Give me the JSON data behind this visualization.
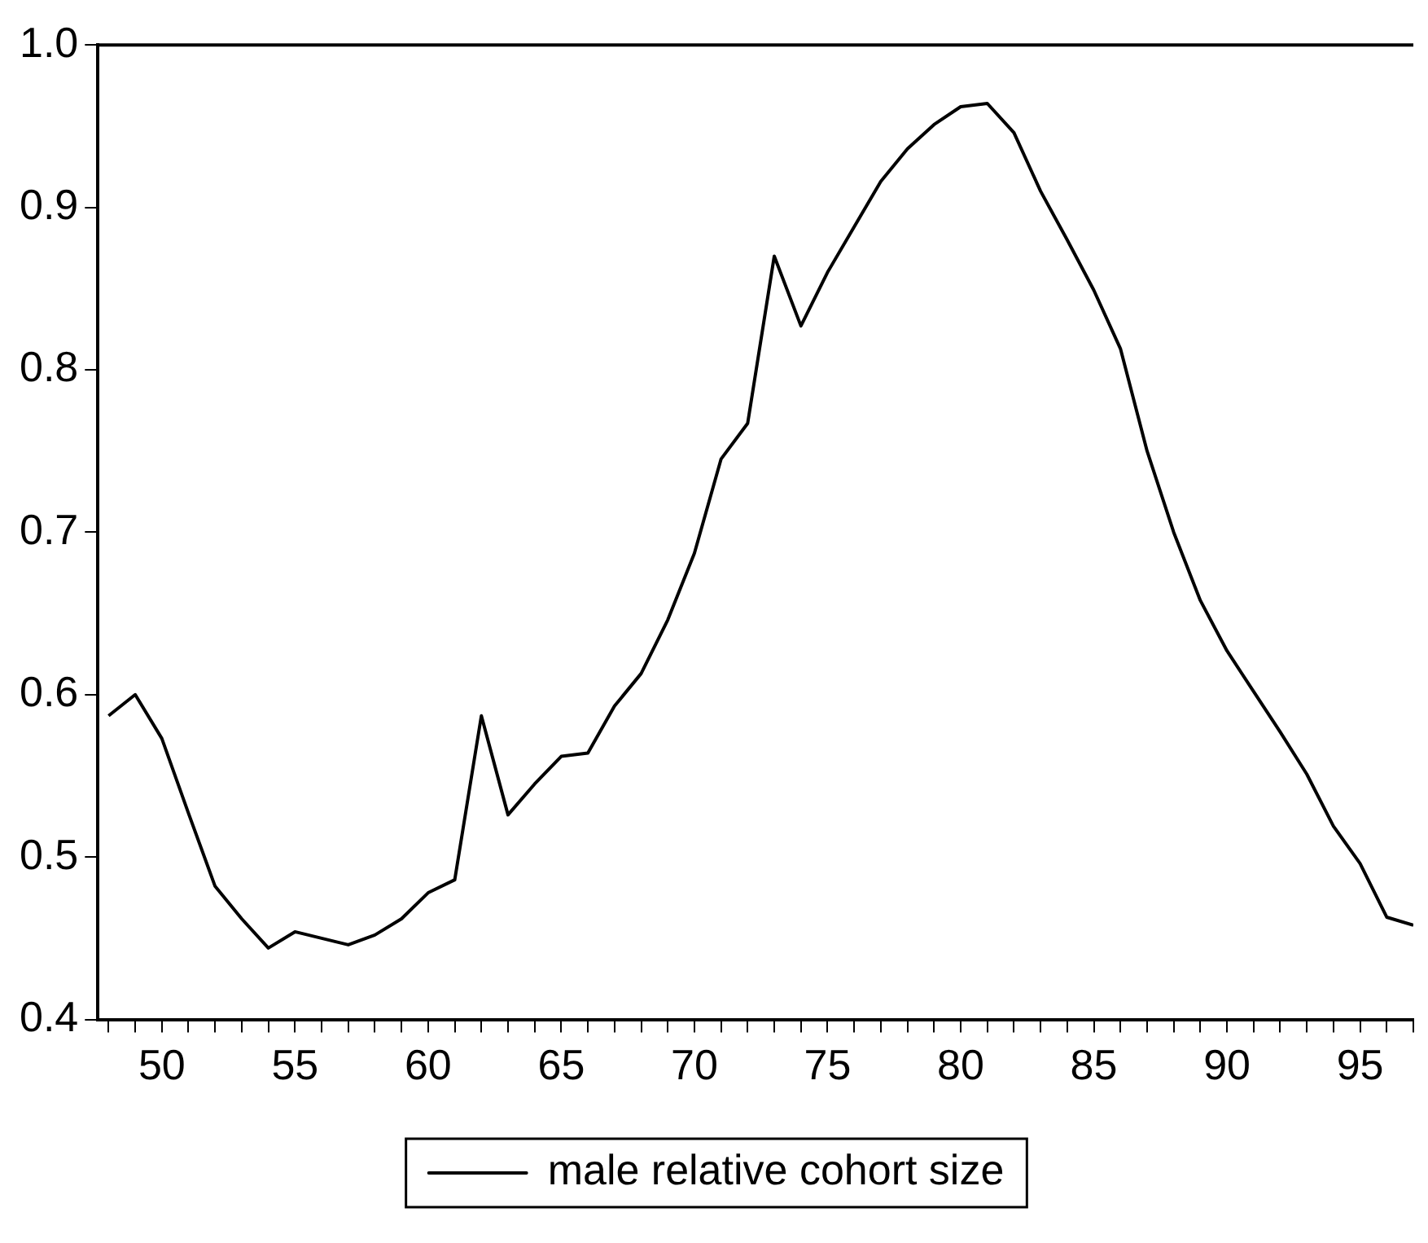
{
  "chart_data": {
    "type": "line",
    "x": [
      48,
      49,
      50,
      51,
      52,
      53,
      54,
      55,
      56,
      57,
      58,
      59,
      60,
      61,
      62,
      63,
      64,
      65,
      66,
      67,
      68,
      69,
      70,
      71,
      72,
      73,
      74,
      75,
      76,
      77,
      78,
      79,
      80,
      81,
      82,
      83,
      84,
      85,
      86,
      87,
      88,
      89,
      90,
      91,
      92,
      93,
      94,
      95,
      96,
      97
    ],
    "series": [
      {
        "name": "male relative cohort size",
        "color": "#000000",
        "values": [
          0.587,
          0.6,
          0.573,
          0.527,
          0.482,
          0.462,
          0.444,
          0.454,
          0.45,
          0.446,
          0.452,
          0.462,
          0.478,
          0.486,
          0.587,
          0.526,
          0.545,
          0.562,
          0.564,
          0.593,
          0.613,
          0.646,
          0.687,
          0.745,
          0.767,
          0.87,
          0.827,
          0.86,
          0.888,
          0.916,
          0.936,
          0.951,
          0.962,
          0.964,
          0.946,
          0.91,
          0.88,
          0.849,
          0.813,
          0.75,
          0.7,
          0.658,
          0.627,
          0.602,
          0.577,
          0.551,
          0.519,
          0.496,
          0.463,
          0.458
        ]
      }
    ],
    "xlim": [
      47.6,
      97
    ],
    "xticks": [
      {
        "value": 48,
        "label": null
      },
      {
        "value": 49,
        "label": null
      },
      50,
      {
        "value": 51,
        "label": null
      },
      {
        "value": 52,
        "label": null
      },
      {
        "value": 53,
        "label": null
      },
      {
        "value": 54,
        "label": null
      },
      55,
      {
        "value": 56,
        "label": null
      },
      {
        "value": 57,
        "label": null
      },
      {
        "value": 58,
        "label": null
      },
      {
        "value": 59,
        "label": null
      },
      60,
      {
        "value": 61,
        "label": null
      },
      {
        "value": 62,
        "label": null
      },
      {
        "value": 63,
        "label": null
      },
      {
        "value": 64,
        "label": null
      },
      65,
      {
        "value": 66,
        "label": null
      },
      {
        "value": 67,
        "label": null
      },
      {
        "value": 68,
        "label": null
      },
      {
        "value": 69,
        "label": null
      },
      70,
      {
        "value": 71,
        "label": null
      },
      {
        "value": 72,
        "label": null
      },
      {
        "value": 73,
        "label": null
      },
      {
        "value": 74,
        "label": null
      },
      75,
      {
        "value": 76,
        "label": null
      },
      {
        "value": 77,
        "label": null
      },
      {
        "value": 78,
        "label": null
      },
      {
        "value": 79,
        "label": null
      },
      80,
      {
        "value": 81,
        "label": null
      },
      {
        "value": 82,
        "label": null
      },
      {
        "value": 83,
        "label": null
      },
      {
        "value": 84,
        "label": null
      },
      85,
      {
        "value": 86,
        "label": null
      },
      {
        "value": 87,
        "label": null
      },
      {
        "value": 88,
        "label": null
      },
      {
        "value": 89,
        "label": null
      },
      90,
      {
        "value": 91,
        "label": null
      },
      {
        "value": 92,
        "label": null
      },
      {
        "value": 93,
        "label": null
      },
      {
        "value": 94,
        "label": null
      },
      95,
      {
        "value": 96,
        "label": null
      },
      {
        "value": 97,
        "label": null
      }
    ],
    "ylim": [
      0.4,
      1.0
    ],
    "yticks": [
      {
        "value": 0.4,
        "label": "0.4"
      },
      {
        "value": 0.5,
        "label": "0.5"
      },
      {
        "value": 0.6,
        "label": "0.6"
      },
      {
        "value": 0.7,
        "label": "0.7"
      },
      {
        "value": 0.8,
        "label": "0.8"
      },
      {
        "value": 0.9,
        "label": "0.9"
      },
      {
        "value": 1.0,
        "label": "1.0"
      }
    ],
    "grid": false,
    "legend": "bottom",
    "marker": "none",
    "line_style": "solid"
  }
}
